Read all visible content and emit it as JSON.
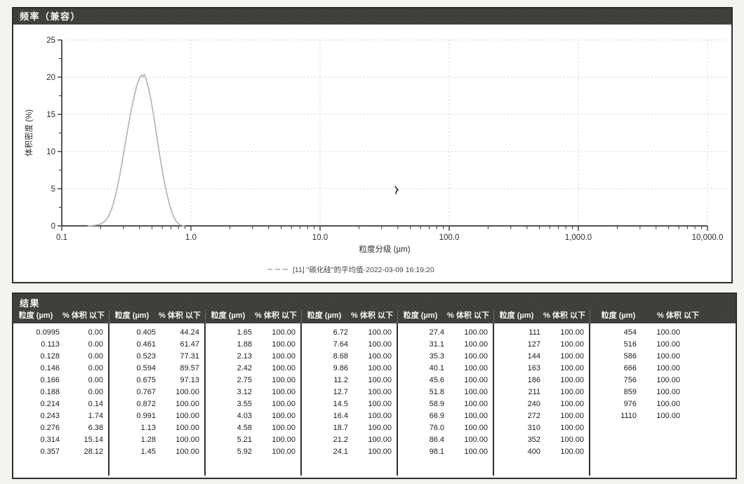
{
  "chart_data": {
    "type": "line",
    "title": "频率（兼容）",
    "xlabel": "粒度分级 (µm)",
    "ylabel": "体积密度 (%)",
    "x_scale": "log",
    "xlim": [
      0.1,
      10000
    ],
    "ylim": [
      0,
      25
    ],
    "y_ticks": [
      0,
      5,
      10,
      15,
      20,
      25
    ],
    "x_ticks": [
      0.1,
      1.0,
      10.0,
      100.0,
      1000.0,
      10000.0
    ],
    "x_tick_labels": [
      "0.1",
      "1.0",
      "10.0",
      "100.0",
      "1,000.0",
      "10,000.0"
    ],
    "grid": true,
    "legend_position": "bottom",
    "legend": "[11] \"碳化硅\"的平均值-2022-03-09 16:19:20",
    "series": [
      {
        "name": "[11] \"碳化硅\"的平均值-2022-03-09 16:19:20",
        "color": "#b9b5ac",
        "points": [
          [
            0.16,
            0
          ],
          [
            0.18,
            0.08
          ],
          [
            0.2,
            0.25
          ],
          [
            0.215,
            0.6
          ],
          [
            0.23,
            1.3
          ],
          [
            0.245,
            2.4
          ],
          [
            0.26,
            4.0
          ],
          [
            0.28,
            6.6
          ],
          [
            0.3,
            9.6
          ],
          [
            0.32,
            12.4
          ],
          [
            0.34,
            15.0
          ],
          [
            0.36,
            17.1
          ],
          [
            0.38,
            18.8
          ],
          [
            0.4,
            19.9
          ],
          [
            0.415,
            20.3
          ],
          [
            0.425,
            20.0
          ],
          [
            0.435,
            20.4
          ],
          [
            0.45,
            19.7
          ],
          [
            0.47,
            18.5
          ],
          [
            0.49,
            17.0
          ],
          [
            0.515,
            14.8
          ],
          [
            0.54,
            12.4
          ],
          [
            0.565,
            10.2
          ],
          [
            0.59,
            8.2
          ],
          [
            0.62,
            6.1
          ],
          [
            0.65,
            4.4
          ],
          [
            0.68,
            3.0
          ],
          [
            0.71,
            1.9
          ],
          [
            0.74,
            1.1
          ],
          [
            0.77,
            0.6
          ],
          [
            0.8,
            0.3
          ],
          [
            0.83,
            0.12
          ],
          [
            0.86,
            0.04
          ],
          [
            0.89,
            0
          ]
        ]
      }
    ]
  },
  "results_table": {
    "title": "结果",
    "size_header": "粒度 (µm)",
    "pct_header": "% 体积 以下",
    "groups": [
      [
        [
          "0.0995",
          "0.00"
        ],
        [
          "0.113",
          "0.00"
        ],
        [
          "0.128",
          "0.00"
        ],
        [
          "0.146",
          "0.00"
        ],
        [
          "0.166",
          "0.00"
        ],
        [
          "0.188",
          "0.00"
        ],
        [
          "0.214",
          "0.14"
        ],
        [
          "0.243",
          "1.74"
        ],
        [
          "0.276",
          "6.38"
        ],
        [
          "0.314",
          "15.14"
        ],
        [
          "0.357",
          "28.12"
        ]
      ],
      [
        [
          "0.405",
          "44.24"
        ],
        [
          "0.461",
          "61.47"
        ],
        [
          "0.523",
          "77.31"
        ],
        [
          "0.594",
          "89.57"
        ],
        [
          "0.675",
          "97.13"
        ],
        [
          "0.767",
          "100.00"
        ],
        [
          "0.872",
          "100.00"
        ],
        [
          "0.991",
          "100.00"
        ],
        [
          "1.13",
          "100.00"
        ],
        [
          "1.28",
          "100.00"
        ],
        [
          "1.45",
          "100.00"
        ]
      ],
      [
        [
          "1.65",
          "100.00"
        ],
        [
          "1.88",
          "100.00"
        ],
        [
          "2.13",
          "100.00"
        ],
        [
          "2.42",
          "100.00"
        ],
        [
          "2.75",
          "100.00"
        ],
        [
          "3.12",
          "100.00"
        ],
        [
          "3.55",
          "100.00"
        ],
        [
          "4.03",
          "100.00"
        ],
        [
          "4.58",
          "100.00"
        ],
        [
          "5.21",
          "100.00"
        ],
        [
          "5.92",
          "100.00"
        ]
      ],
      [
        [
          "6.72",
          "100.00"
        ],
        [
          "7.64",
          "100.00"
        ],
        [
          "8.68",
          "100.00"
        ],
        [
          "9.86",
          "100.00"
        ],
        [
          "11.2",
          "100.00"
        ],
        [
          "12.7",
          "100.00"
        ],
        [
          "14.5",
          "100.00"
        ],
        [
          "16.4",
          "100.00"
        ],
        [
          "18.7",
          "100.00"
        ],
        [
          "21.2",
          "100.00"
        ],
        [
          "24.1",
          "100.00"
        ]
      ],
      [
        [
          "27.4",
          "100.00"
        ],
        [
          "31.1",
          "100.00"
        ],
        [
          "35.3",
          "100.00"
        ],
        [
          "40.1",
          "100.00"
        ],
        [
          "45.6",
          "100.00"
        ],
        [
          "51.8",
          "100.00"
        ],
        [
          "58.9",
          "100.00"
        ],
        [
          "66.9",
          "100.00"
        ],
        [
          "76.0",
          "100.00"
        ],
        [
          "86.4",
          "100.00"
        ],
        [
          "98.1",
          "100.00"
        ]
      ],
      [
        [
          "111",
          "100.00"
        ],
        [
          "127",
          "100.00"
        ],
        [
          "144",
          "100.00"
        ],
        [
          "163",
          "100.00"
        ],
        [
          "186",
          "100.00"
        ],
        [
          "211",
          "100.00"
        ],
        [
          "240",
          "100.00"
        ],
        [
          "272",
          "100.00"
        ],
        [
          "310",
          "100.00"
        ],
        [
          "352",
          "100.00"
        ],
        [
          "400",
          "100.00"
        ]
      ],
      [
        [
          "454",
          "100.00"
        ],
        [
          "516",
          "100.00"
        ],
        [
          "586",
          "100.00"
        ],
        [
          "666",
          "100.00"
        ],
        [
          "756",
          "100.00"
        ],
        [
          "859",
          "100.00"
        ],
        [
          "976",
          "100.00"
        ],
        [
          "1110",
          "100.00"
        ]
      ]
    ]
  },
  "colors": {
    "header_bg": "#3e3d3a",
    "panel_border": "#2f2e2c",
    "curve": "#b9b5ac",
    "grid": "#c9c7c2",
    "axis": "#3a3a3a",
    "text": "#2b2b2b",
    "legend_text": "#454545"
  }
}
